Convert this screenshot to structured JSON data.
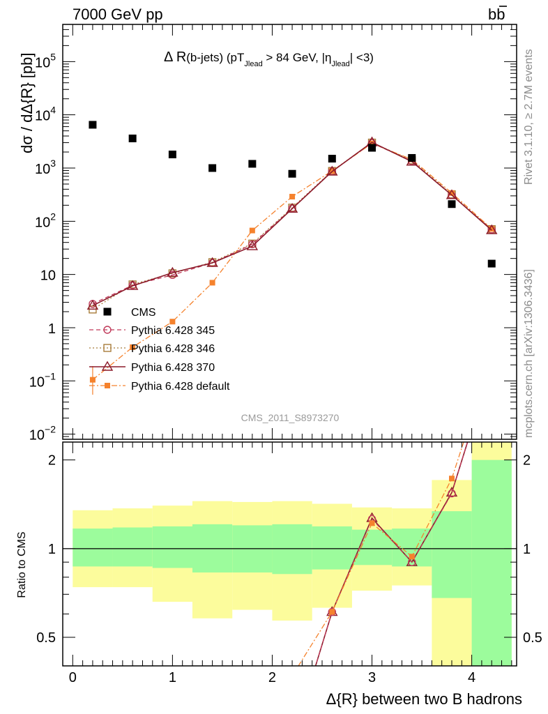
{
  "header": {
    "energy_label": "7000 GeV pp",
    "process_label": "bb",
    "side_rivet": "Rivet 3.1.10, ≥ 2.7M events",
    "side_mcplots": "mcplots.cern.ch [arXiv:1306.3436]",
    "analysis_id": "CMS_2011_S8973270"
  },
  "colors": {
    "cms": "#000000",
    "p345": "#c03a5a",
    "p346": "#a87c3a",
    "p370": "#8b1a2a",
    "pdefault": "#f5822d",
    "band_inner": "#9cfc9c",
    "band_outer": "#fcfc9c"
  },
  "chart_data": [
    {
      "type": "scatter",
      "title": "Δ R(b-jets) (pT_Jlead > 84 GeV, |η_Jlead| <3)",
      "title_parts": {
        "main": "Δ R",
        "sub1": "(b-jets) (pT",
        "jlead": "Jlead",
        "mid": " >  84 GeV, |η",
        "end": "| <3)"
      },
      "ylabel": "dσ / dΔ{R} [pb]",
      "yscale": "log",
      "ylim": [
        0.008,
        500000
      ],
      "xlim": [
        -0.1,
        4.45
      ],
      "y_ticks": [
        {
          "value": 100000,
          "mant": "10",
          "exp": "5"
        },
        {
          "value": 10000,
          "mant": "10",
          "exp": "4"
        },
        {
          "value": 1000,
          "mant": "10",
          "exp": "3"
        },
        {
          "value": 100,
          "mant": "10",
          "exp": "2"
        },
        {
          "value": 10,
          "mant": "10",
          "exp": ""
        },
        {
          "value": 1,
          "mant": "1",
          "exp": ""
        },
        {
          "value": 0.1,
          "mant": "10",
          "exp": "−1"
        },
        {
          "value": 0.01,
          "mant": "10",
          "exp": "−2"
        }
      ],
      "x": [
        0.2,
        0.6,
        1.0,
        1.4,
        1.8,
        2.2,
        2.6,
        3.0,
        3.4,
        3.8,
        4.2
      ],
      "series": [
        {
          "key": "cms",
          "name": "CMS",
          "style": "data",
          "values": [
            6500,
            3600,
            1800,
            1000,
            1200,
            780,
            1500,
            2400,
            1550,
            210,
            16
          ]
        },
        {
          "key": "p345",
          "name": "Pythia 6.428 345",
          "style": "circle-dashed",
          "values": [
            2.8,
            6.3,
            9.8,
            16.5,
            37,
            175,
            870,
            2950,
            1350,
            310,
            70
          ]
        },
        {
          "key": "p346",
          "name": "Pythia 6.428 346",
          "style": "square-dotted",
          "values": [
            2.2,
            6.5,
            10.5,
            17,
            38,
            180,
            880,
            3000,
            1400,
            320,
            71
          ]
        },
        {
          "key": "p370",
          "name": "Pythia 6.428 370",
          "style": "triangle-solid",
          "values": [
            2.6,
            6.1,
            10.8,
            16.5,
            34,
            172,
            860,
            3050,
            1320,
            310,
            68
          ]
        },
        {
          "key": "pdefault",
          "name": "Pythia 6.428 default",
          "style": "filled-square-dashdot",
          "values": [
            0.105,
            0.43,
            1.3,
            7,
            67,
            290,
            880,
            2900,
            1450,
            340,
            72
          ]
        }
      ]
    },
    {
      "type": "line",
      "ylabel": "Ratio to CMS",
      "xlabel": "Δ{R} between two B hadrons",
      "yscale": "log",
      "ylim": [
        0.4,
        2.3
      ],
      "xlim": [
        -0.1,
        4.45
      ],
      "x_ticks": [
        "0",
        "1",
        "2",
        "3",
        "4"
      ],
      "y_ticks": [
        "0.5",
        "1",
        "2"
      ],
      "band_edges": [
        0,
        0.4,
        0.8,
        1.2,
        1.6,
        2.0,
        2.4,
        2.8,
        3.2,
        3.6,
        4.0,
        4.4
      ],
      "band_inner": [
        [
          0.87,
          1.17
        ],
        [
          0.87,
          1.18
        ],
        [
          0.86,
          1.19
        ],
        [
          0.83,
          1.21
        ],
        [
          0.83,
          1.2
        ],
        [
          0.82,
          1.21
        ],
        [
          0.85,
          1.19
        ],
        [
          0.88,
          1.16
        ],
        [
          0.87,
          1.17
        ],
        [
          0.68,
          1.34
        ],
        [
          0.4,
          2.0
        ]
      ],
      "band_outer": [
        [
          0.74,
          1.35
        ],
        [
          0.74,
          1.37
        ],
        [
          0.66,
          1.4
        ],
        [
          0.58,
          1.45
        ],
        [
          0.62,
          1.44
        ],
        [
          0.57,
          1.45
        ],
        [
          0.63,
          1.42
        ],
        [
          0.72,
          1.38
        ],
        [
          0.75,
          1.37
        ],
        [
          0.35,
          1.71
        ],
        [
          0.35,
          2.3
        ]
      ],
      "x": [
        0.2,
        0.6,
        1.0,
        1.4,
        1.8,
        2.2,
        2.6,
        3.0,
        3.4,
        3.8,
        4.2
      ],
      "series": [
        {
          "key": "p370",
          "name": "Pythia 6.428 370",
          "values": [
            null,
            null,
            null,
            null,
            null,
            0.22,
            0.61,
            1.27,
            0.9,
            1.55,
            4.2
          ]
        },
        {
          "key": "p345",
          "name": "Pythia 6.428 345",
          "values": [
            null,
            null,
            null,
            null,
            null,
            0.22,
            0.61,
            1.26,
            0.9,
            1.54,
            4.3
          ]
        },
        {
          "key": "pdefault",
          "name": "Pythia 6.428 default",
          "values": [
            null,
            null,
            null,
            null,
            null,
            0.37,
            0.61,
            1.22,
            0.94,
            1.73,
            4.5
          ]
        }
      ]
    }
  ]
}
